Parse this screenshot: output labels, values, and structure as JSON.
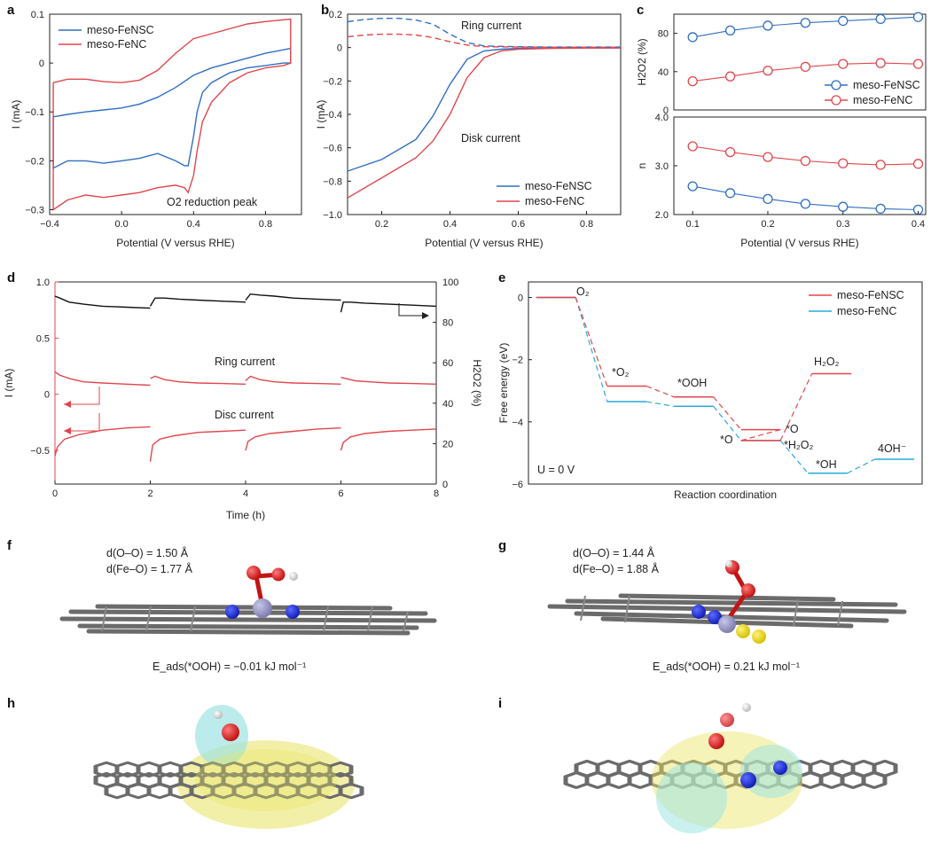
{
  "figure": {
    "panel_letters": [
      "a",
      "b",
      "c",
      "d",
      "e",
      "f",
      "g",
      "h",
      "i"
    ]
  },
  "colors": {
    "fensc": "#2f6fc4",
    "fenc": "#e0474c",
    "black": "#111111",
    "cyan": "#29a9dd",
    "red": "#e0474c"
  },
  "chart_data": [
    {
      "panel": "a",
      "type": "line",
      "xlabel": "Potential (V versus RHE)",
      "ylabel": "I (mA)",
      "xlim": [
        -0.4,
        1.0
      ],
      "ylim": [
        -0.31,
        0.1
      ],
      "xticks": [
        -0.4,
        0.0,
        0.4,
        0.8
      ],
      "xticklabels": [
        "−0.4",
        "0.0",
        "0.4",
        "0.8"
      ],
      "yticks": [
        0.1,
        0.0,
        -0.1,
        -0.2,
        -0.3
      ],
      "yticklabels": [
        "0.1",
        "0",
        "−0.1",
        "−0.2",
        "−0.3"
      ],
      "annotation": "O2 reduction peak",
      "series": [
        {
          "name": "meso-FeNSC",
          "color": "#2f6fc4",
          "x": [
            -0.38,
            -0.3,
            -0.2,
            -0.1,
            0.0,
            0.1,
            0.2,
            0.3,
            0.4,
            0.5,
            0.6,
            0.7,
            0.8,
            0.94,
            0.94,
            0.9,
            0.8,
            0.7,
            0.6,
            0.5,
            0.45,
            0.42,
            0.4,
            0.37,
            0.35,
            0.3,
            0.2,
            0.1,
            0.0,
            -0.1,
            -0.2,
            -0.3,
            -0.38,
            -0.38
          ],
          "y": [
            -0.11,
            -0.105,
            -0.1,
            -0.096,
            -0.092,
            -0.084,
            -0.07,
            -0.05,
            -0.025,
            -0.01,
            0.0,
            0.01,
            0.02,
            0.03,
            0.0,
            0.0,
            -0.005,
            -0.01,
            -0.02,
            -0.04,
            -0.06,
            -0.1,
            -0.15,
            -0.21,
            -0.21,
            -0.2,
            -0.185,
            -0.195,
            -0.2,
            -0.205,
            -0.2,
            -0.2,
            -0.215,
            -0.11
          ]
        },
        {
          "name": "meso-FeNC",
          "color": "#e0474c",
          "x": [
            -0.38,
            -0.3,
            -0.2,
            -0.1,
            0.0,
            0.1,
            0.2,
            0.3,
            0.4,
            0.5,
            0.6,
            0.7,
            0.8,
            0.94,
            0.94,
            0.9,
            0.8,
            0.7,
            0.6,
            0.5,
            0.45,
            0.42,
            0.4,
            0.37,
            0.35,
            0.3,
            0.2,
            0.1,
            0.0,
            -0.1,
            -0.2,
            -0.3,
            -0.38,
            -0.38
          ],
          "y": [
            -0.04,
            -0.033,
            -0.033,
            -0.038,
            -0.04,
            -0.035,
            -0.015,
            0.02,
            0.05,
            0.06,
            0.07,
            0.08,
            0.085,
            0.09,
            0.0,
            -0.005,
            -0.01,
            -0.02,
            -0.04,
            -0.08,
            -0.12,
            -0.18,
            -0.23,
            -0.265,
            -0.255,
            -0.25,
            -0.255,
            -0.265,
            -0.27,
            -0.275,
            -0.27,
            -0.28,
            -0.3,
            -0.04
          ]
        }
      ]
    },
    {
      "panel": "b",
      "type": "line",
      "xlabel": "Potential (V versus RHE)",
      "ylabel": "I (mA)",
      "xlim": [
        0.1,
        0.9
      ],
      "ylim": [
        -1.0,
        0.2
      ],
      "xticks": [
        0.2,
        0.4,
        0.6,
        0.8
      ],
      "xticklabels": [
        "0.2",
        "0.4",
        "0.6",
        "0.8"
      ],
      "yticks": [
        0.2,
        0.0,
        -0.2,
        -0.4,
        -0.6,
        -0.8,
        -1.0
      ],
      "yticklabels": [
        "0.2",
        "0",
        "−0.2",
        "−0.4",
        "−0.6",
        "−0.8",
        "−1.0"
      ],
      "annotations": [
        "Ring current",
        "Disk current"
      ],
      "series": [
        {
          "name": "meso-FeNSC",
          "color": "#2f6fc4",
          "style": "solid",
          "x": [
            0.1,
            0.2,
            0.3,
            0.35,
            0.4,
            0.45,
            0.5,
            0.55,
            0.6,
            0.7,
            0.8,
            0.9
          ],
          "y": [
            -0.74,
            -0.67,
            -0.55,
            -0.41,
            -0.22,
            -0.07,
            -0.02,
            -0.01,
            -0.005,
            -0.003,
            -0.002,
            -0.002
          ]
        },
        {
          "name": "meso-FeNC",
          "color": "#e0474c",
          "style": "solid",
          "x": [
            0.1,
            0.2,
            0.3,
            0.35,
            0.4,
            0.45,
            0.5,
            0.55,
            0.6,
            0.7,
            0.8,
            0.9
          ],
          "y": [
            -0.9,
            -0.78,
            -0.66,
            -0.56,
            -0.4,
            -0.18,
            -0.06,
            -0.02,
            -0.01,
            -0.005,
            -0.003,
            -0.002
          ]
        },
        {
          "name": "",
          "color": "#2f6fc4",
          "style": "dashed",
          "x": [
            0.1,
            0.15,
            0.2,
            0.25,
            0.3,
            0.35,
            0.4,
            0.45,
            0.5,
            0.6,
            0.7,
            0.9
          ],
          "y": [
            0.155,
            0.168,
            0.175,
            0.175,
            0.165,
            0.14,
            0.08,
            0.03,
            0.01,
            0.005,
            0.003,
            0.003
          ]
        },
        {
          "name": "",
          "color": "#e0474c",
          "style": "dashed",
          "x": [
            0.1,
            0.15,
            0.2,
            0.25,
            0.3,
            0.35,
            0.4,
            0.45,
            0.5,
            0.6,
            0.7,
            0.9
          ],
          "y": [
            0.065,
            0.075,
            0.08,
            0.08,
            0.075,
            0.06,
            0.035,
            0.015,
            0.005,
            0.003,
            0.002,
            0.002
          ]
        }
      ]
    },
    {
      "panel": "c-top",
      "type": "line",
      "xlabel": "",
      "ylabel": "H2O2 (%)",
      "xlim": [
        0.075,
        0.41
      ],
      "ylim": [
        0,
        100
      ],
      "yticks": [
        0,
        40,
        80
      ],
      "series": [
        {
          "name": "meso-FeNSC",
          "color": "#2f6fc4",
          "x": [
            0.1,
            0.15,
            0.2,
            0.25,
            0.3,
            0.35,
            0.4
          ],
          "y": [
            76,
            83,
            88,
            91,
            93,
            95,
            97
          ]
        },
        {
          "name": "meso-FeNC",
          "color": "#e0474c",
          "x": [
            0.1,
            0.15,
            0.2,
            0.25,
            0.3,
            0.35,
            0.4
          ],
          "y": [
            30,
            35,
            41,
            45,
            48,
            49,
            48
          ]
        }
      ]
    },
    {
      "panel": "c-bottom",
      "type": "line",
      "xlabel": "Potential (V versus RHE)",
      "ylabel": "n",
      "xlim": [
        0.075,
        0.41
      ],
      "ylim": [
        2.0,
        4.0
      ],
      "xticks": [
        0.1,
        0.2,
        0.3,
        0.4
      ],
      "xticklabels": [
        "0.1",
        "0.2",
        "0.3",
        "0.4"
      ],
      "yticks": [
        2.0,
        3.0,
        4.0
      ],
      "yticklabels": [
        "2.0",
        "3.0",
        "4.0"
      ],
      "series": [
        {
          "name": "meso-FeNSC",
          "color": "#2f6fc4",
          "x": [
            0.1,
            0.15,
            0.2,
            0.25,
            0.3,
            0.35,
            0.4
          ],
          "y": [
            2.58,
            2.44,
            2.32,
            2.22,
            2.16,
            2.12,
            2.1
          ]
        },
        {
          "name": "meso-FeNC",
          "color": "#e0474c",
          "x": [
            0.1,
            0.15,
            0.2,
            0.25,
            0.3,
            0.35,
            0.4
          ],
          "y": [
            3.4,
            3.28,
            3.18,
            3.1,
            3.05,
            3.02,
            3.04
          ]
        }
      ]
    },
    {
      "panel": "d",
      "type": "line",
      "xlabel": "Time (h)",
      "ylabel": "I (mA)",
      "y2label": "H2O2 (%)",
      "xlim": [
        0,
        8
      ],
      "ylim": [
        -0.8,
        1.0
      ],
      "y2lim": [
        0,
        100
      ],
      "xticks": [
        0,
        2,
        4,
        6,
        8
      ],
      "yticks": [
        1.0,
        0.5,
        0,
        -0.5
      ],
      "yticklabels": [
        "1.0",
        "0.5",
        "0",
        "−0.5"
      ],
      "y2ticks": [
        100,
        80,
        60,
        40,
        20,
        0
      ],
      "annotations": [
        "Ring current",
        "Disc current"
      ],
      "series": [
        {
          "name": "H2O2",
          "axis": "right",
          "color": "#111111",
          "segments": [
            {
              "x": [
                0.0,
                0.1,
                0.3,
                0.6,
                1.0,
                1.5,
                2.0
              ],
              "y": [
                93,
                92,
                90,
                89,
                88,
                87.5,
                87
              ]
            },
            {
              "x": [
                2.0,
                2.1,
                2.3,
                2.6,
                3.0,
                3.5,
                4.0
              ],
              "y": [
                88,
                92,
                92,
                91.5,
                91,
                90.5,
                90
              ]
            },
            {
              "x": [
                4.0,
                4.1,
                4.3,
                4.6,
                5.0,
                5.5,
                6.0
              ],
              "y": [
                91,
                94,
                93.5,
                93,
                92,
                91.5,
                91
              ]
            },
            {
              "x": [
                6.0,
                6.05,
                6.2,
                6.5,
                7.0,
                7.5,
                8.0
              ],
              "y": [
                85,
                90,
                90,
                89.5,
                89,
                88.5,
                88
              ]
            }
          ]
        },
        {
          "name": "Ring current",
          "axis": "left",
          "color": "#e0474c",
          "segments": [
            {
              "x": [
                0.0,
                0.1,
                0.3,
                0.6,
                1.0,
                1.5,
                2.0
              ],
              "y": [
                0.2,
                0.17,
                0.14,
                0.11,
                0.1,
                0.09,
                0.08
              ]
            },
            {
              "x": [
                2.0,
                2.1,
                2.3,
                2.6,
                3.0,
                3.5,
                4.0
              ],
              "y": [
                0.14,
                0.16,
                0.13,
                0.11,
                0.1,
                0.095,
                0.09
              ]
            },
            {
              "x": [
                4.0,
                4.1,
                4.3,
                4.6,
                5.0,
                5.5,
                6.0
              ],
              "y": [
                0.12,
                0.16,
                0.13,
                0.11,
                0.1,
                0.095,
                0.09
              ]
            },
            {
              "x": [
                6.0,
                6.1,
                6.3,
                6.6,
                7.0,
                7.5,
                8.0
              ],
              "y": [
                0.15,
                0.14,
                0.12,
                0.11,
                0.1,
                0.095,
                0.09
              ]
            }
          ]
        },
        {
          "name": "Disc current",
          "axis": "left",
          "color": "#e0474c",
          "segments": [
            {
              "x": [
                0.0,
                0.05,
                0.2,
                0.5,
                1.0,
                1.5,
                2.0
              ],
              "y": [
                -0.55,
                -0.47,
                -0.4,
                -0.36,
                -0.32,
                -0.3,
                -0.29
              ]
            },
            {
              "x": [
                2.0,
                2.05,
                2.2,
                2.5,
                3.0,
                3.5,
                4.0
              ],
              "y": [
                -0.6,
                -0.45,
                -0.4,
                -0.37,
                -0.34,
                -0.33,
                -0.32
              ]
            },
            {
              "x": [
                4.0,
                4.05,
                4.2,
                4.5,
                5.0,
                5.5,
                6.0
              ],
              "y": [
                -0.5,
                -0.42,
                -0.38,
                -0.35,
                -0.33,
                -0.31,
                -0.3
              ]
            },
            {
              "x": [
                6.0,
                6.05,
                6.2,
                6.5,
                7.0,
                7.5,
                8.0
              ],
              "y": [
                -0.5,
                -0.43,
                -0.38,
                -0.35,
                -0.33,
                -0.32,
                -0.31
              ]
            }
          ]
        }
      ]
    },
    {
      "panel": "e",
      "type": "line",
      "xlabel": "Reaction coordination",
      "ylabel": "Free energy (eV)",
      "ylim": [
        -6,
        0.5
      ],
      "yticks": [
        0,
        -2,
        -4,
        -6
      ],
      "yticklabels": [
        "0",
        "−2",
        "−4",
        "−6"
      ],
      "condition": "U = 0 V",
      "series": [
        {
          "name": "meso-FeNSC",
          "color": "#e0474c",
          "levels": [
            {
              "label": "O2",
              "energy": 0.0
            },
            {
              "label": "*O2",
              "energy": -2.85
            },
            {
              "label": "*OOH",
              "energy": -3.2
            },
            {
              "label": "*O",
              "energy": -4.25
            },
            {
              "label": "*H2O2",
              "energy": -4.6
            },
            {
              "label": "H2O2",
              "energy": -2.45
            }
          ]
        },
        {
          "name": "meso-FeNC",
          "color": "#29a9dd",
          "levels": [
            {
              "label": "O2",
              "energy": 0.0
            },
            {
              "label": "*O2",
              "energy": -3.35
            },
            {
              "label": "*OOH",
              "energy": -3.5
            },
            {
              "label": "*O",
              "energy": -4.6
            },
            {
              "label": "*OH",
              "energy": -5.65
            },
            {
              "label": "4OH-",
              "energy": -5.2
            }
          ]
        }
      ]
    }
  ],
  "panel_f": {
    "d_oo": "d(O–O) = 1.50 Å",
    "d_feo": "d(Fe–O) = 1.77 Å",
    "eads": "E_ads(*OOH) = −0.01 kJ mol⁻¹"
  },
  "panel_g": {
    "d_oo": "d(O–O) = 1.44 Å",
    "d_feo": "d(Fe–O) = 1.88 Å",
    "eads": "E_ads(*OOH) = 0.21 kJ mol⁻¹"
  }
}
